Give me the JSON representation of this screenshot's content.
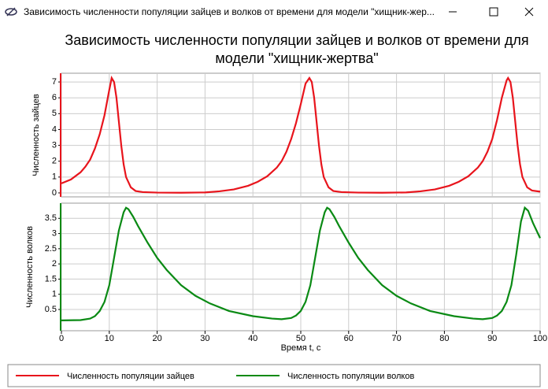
{
  "window": {
    "title": "Зависимость численности популяции зайцев и волков от времени для модели \"хищник-жер..."
  },
  "chart_data": [
    {
      "type": "line",
      "title": "Зависимость численности популяции зайцев и волков от времени для модели \"хищник-жертва\"",
      "ylabel": "Численность зайцев",
      "xlim": [
        0,
        100
      ],
      "ylim": [
        -0.25,
        7.55
      ],
      "yticks": [
        0,
        1,
        2,
        3,
        4,
        5,
        6,
        7
      ],
      "grid": true,
      "x": [
        0,
        2,
        4,
        5,
        6,
        7,
        8,
        9,
        10,
        10.5,
        11,
        11.5,
        12,
        12.5,
        13,
        13.5,
        14.5,
        15.5,
        17,
        20,
        25,
        30,
        33,
        36,
        39,
        41,
        43,
        45,
        46,
        47,
        48,
        49,
        50,
        51,
        51.8,
        52.3,
        52.8,
        53.3,
        53.8,
        54.3,
        54.8,
        55.8,
        56.8,
        58.5,
        62,
        67,
        72,
        75,
        78,
        81,
        83,
        85,
        87,
        88,
        89,
        90,
        91,
        92,
        93,
        93.3,
        93.8,
        94.3,
        94.8,
        95.3,
        95.8,
        96.3,
        97.3,
        98.3,
        100
      ],
      "series": [
        {
          "name": "Численность популяции зайцев",
          "color": "#e8141c",
          "values": [
            0.6,
            0.85,
            1.3,
            1.65,
            2.1,
            2.8,
            3.7,
            4.9,
            6.5,
            7.25,
            7.0,
            6.0,
            4.5,
            3.0,
            1.8,
            1.0,
            0.35,
            0.12,
            0.05,
            0.02,
            0.01,
            0.03,
            0.1,
            0.22,
            0.45,
            0.7,
            1.05,
            1.6,
            2.0,
            2.6,
            3.4,
            4.4,
            5.6,
            6.9,
            7.25,
            7.0,
            6.0,
            4.5,
            3.0,
            1.8,
            1.0,
            0.35,
            0.12,
            0.05,
            0.02,
            0.01,
            0.03,
            0.1,
            0.22,
            0.45,
            0.7,
            1.05,
            1.6,
            2.0,
            2.6,
            3.4,
            4.6,
            6.0,
            7.1,
            7.25,
            7.0,
            6.0,
            4.5,
            3.0,
            1.8,
            1.0,
            0.35,
            0.15,
            0.08
          ]
        }
      ]
    },
    {
      "type": "line",
      "ylabel": "Численность волков",
      "xlabel": "Время t, с",
      "xlim": [
        0,
        100
      ],
      "xticks": [
        0,
        10,
        20,
        30,
        40,
        50,
        60,
        70,
        80,
        90,
        100
      ],
      "ylim": [
        -0.2,
        4
      ],
      "yticks": [
        0.5,
        1,
        1.5,
        2,
        2.5,
        3,
        3.5
      ],
      "grid": true,
      "x": [
        0,
        4,
        6,
        7,
        8,
        9,
        10,
        11,
        12,
        13,
        13.5,
        14,
        15,
        16,
        18,
        20,
        22,
        25,
        28,
        31,
        35,
        40,
        44,
        46,
        48,
        49,
        50,
        51,
        52,
        53,
        54,
        55,
        55.5,
        56,
        57,
        58,
        60,
        62,
        64,
        67,
        70,
        73,
        77,
        82,
        86,
        88,
        90,
        91,
        92,
        93,
        94,
        95,
        96,
        96.8,
        97.5,
        98.5,
        100
      ],
      "series": [
        {
          "name": "Численность популяции волков",
          "color": "#0a8a14",
          "values": [
            0.14,
            0.15,
            0.2,
            0.28,
            0.45,
            0.75,
            1.3,
            2.2,
            3.1,
            3.7,
            3.85,
            3.8,
            3.55,
            3.25,
            2.7,
            2.2,
            1.8,
            1.3,
            0.95,
            0.7,
            0.45,
            0.28,
            0.2,
            0.18,
            0.22,
            0.3,
            0.45,
            0.75,
            1.3,
            2.2,
            3.1,
            3.7,
            3.85,
            3.8,
            3.55,
            3.25,
            2.7,
            2.2,
            1.8,
            1.3,
            0.95,
            0.7,
            0.45,
            0.28,
            0.2,
            0.18,
            0.22,
            0.3,
            0.45,
            0.75,
            1.3,
            2.3,
            3.4,
            3.85,
            3.75,
            3.35,
            2.85
          ]
        }
      ]
    }
  ]
}
